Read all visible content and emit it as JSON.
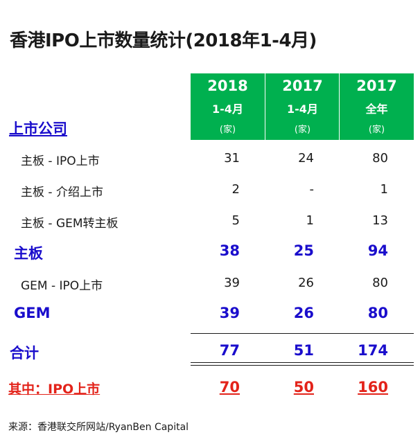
{
  "title": "香港IPO上市数量统计(2018年1-4月)",
  "columns": [
    {
      "year": "2018",
      "period": "1-4月",
      "unit": "(家)"
    },
    {
      "year": "2017",
      "period": "1-4月",
      "unit": "(家)"
    },
    {
      "year": "2017",
      "period": "全年",
      "unit": "(家)"
    }
  ],
  "colors": {
    "header_bg": "#00b04f",
    "header_text": "#ffffff",
    "blue": "#1a0dcc",
    "red": "#e3231a",
    "text": "#1a1a1a"
  },
  "section_label": "上市公司",
  "rows": [
    {
      "label": "主板 - IPO上市",
      "values": [
        "31",
        "24",
        "80"
      ],
      "style": "normal"
    },
    {
      "label": "主板 - 介绍上市",
      "values": [
        "2",
        "-",
        "1"
      ],
      "style": "normal"
    },
    {
      "label": "主板 - GEM转主板",
      "values": [
        "5",
        "1",
        "13"
      ],
      "style": "normal"
    },
    {
      "label": "主板",
      "values": [
        "38",
        "25",
        "94"
      ],
      "style": "bold-blue"
    },
    {
      "label": "GEM - IPO上市",
      "values": [
        "39",
        "26",
        "80"
      ],
      "style": "normal"
    },
    {
      "label": "GEM",
      "values": [
        "39",
        "26",
        "80"
      ],
      "style": "bold-blue"
    },
    {
      "label": "合计",
      "values": [
        "77",
        "51",
        "174"
      ],
      "style": "total"
    },
    {
      "label": "其中：IPO上市",
      "values": [
        "70",
        "50",
        "160"
      ],
      "style": "red"
    }
  ],
  "footer": "来源：香港联交所网站/RyanBen Capital"
}
